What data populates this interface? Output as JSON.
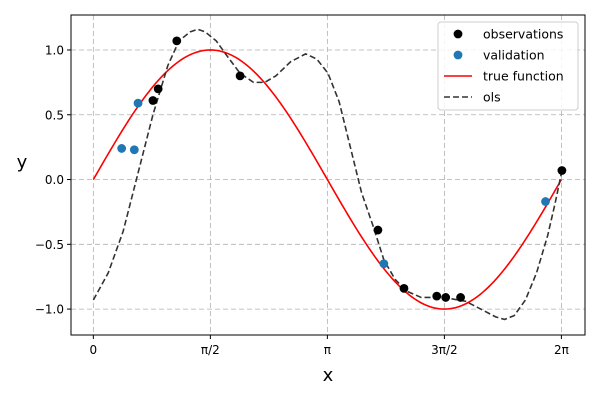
{
  "chart_data": {
    "type": "scatter",
    "xlabel": "x",
    "ylabel": "y",
    "xlim": [
      -0.3,
      6.6
    ],
    "ylim": [
      -1.2,
      1.27
    ],
    "xticks": [
      {
        "value": 0,
        "label": "0"
      },
      {
        "value": 1.5708,
        "label": "π/2"
      },
      {
        "value": 3.1416,
        "label": "π"
      },
      {
        "value": 4.7124,
        "label": "3π/2"
      },
      {
        "value": 6.2832,
        "label": "2π"
      }
    ],
    "yticks": [
      {
        "value": -1.0,
        "label": "−1.0"
      },
      {
        "value": -0.5,
        "label": "−0.5"
      },
      {
        "value": 0.0,
        "label": "0.0"
      },
      {
        "value": 0.5,
        "label": "0.5"
      },
      {
        "value": 1.0,
        "label": "1.0"
      }
    ],
    "grid": true,
    "legend_position": "top-right",
    "series": [
      {
        "name": "observations",
        "kind": "scatter",
        "color": "#000000",
        "points": [
          {
            "x": 0.8,
            "y": 0.61
          },
          {
            "x": 0.87,
            "y": 0.7
          },
          {
            "x": 1.12,
            "y": 1.07
          },
          {
            "x": 1.97,
            "y": 0.8
          },
          {
            "x": 3.82,
            "y": -0.39
          },
          {
            "x": 4.17,
            "y": -0.84
          },
          {
            "x": 4.61,
            "y": -0.9
          },
          {
            "x": 4.73,
            "y": -0.91
          },
          {
            "x": 4.93,
            "y": -0.91
          },
          {
            "x": 6.29,
            "y": 0.07
          }
        ]
      },
      {
        "name": "validation",
        "kind": "scatter",
        "color": "#1f77b4",
        "points": [
          {
            "x": 0.38,
            "y": 0.24
          },
          {
            "x": 0.55,
            "y": 0.23
          },
          {
            "x": 0.6,
            "y": 0.59
          },
          {
            "x": 3.9,
            "y": -0.65
          },
          {
            "x": 6.07,
            "y": -0.17
          }
        ]
      },
      {
        "name": "true function",
        "kind": "line",
        "color": "#ff0000",
        "function": "sin",
        "domain": [
          0,
          6.2832
        ]
      },
      {
        "name": "ols",
        "kind": "dashed-line",
        "color": "#333333",
        "points": [
          {
            "x": 0.0,
            "y": -0.93
          },
          {
            "x": 0.2,
            "y": -0.72
          },
          {
            "x": 0.4,
            "y": -0.4
          },
          {
            "x": 0.6,
            "y": 0.05
          },
          {
            "x": 0.8,
            "y": 0.5
          },
          {
            "x": 1.0,
            "y": 0.88
          },
          {
            "x": 1.15,
            "y": 1.07
          },
          {
            "x": 1.3,
            "y": 1.14
          },
          {
            "x": 1.4,
            "y": 1.16
          },
          {
            "x": 1.5,
            "y": 1.14
          },
          {
            "x": 1.65,
            "y": 1.07
          },
          {
            "x": 1.8,
            "y": 0.95
          },
          {
            "x": 1.97,
            "y": 0.82
          },
          {
            "x": 2.15,
            "y": 0.75
          },
          {
            "x": 2.3,
            "y": 0.75
          },
          {
            "x": 2.45,
            "y": 0.8
          },
          {
            "x": 2.65,
            "y": 0.91
          },
          {
            "x": 2.85,
            "y": 0.97
          },
          {
            "x": 3.0,
            "y": 0.93
          },
          {
            "x": 3.15,
            "y": 0.82
          },
          {
            "x": 3.3,
            "y": 0.6
          },
          {
            "x": 3.45,
            "y": 0.25
          },
          {
            "x": 3.6,
            "y": -0.1
          },
          {
            "x": 3.75,
            "y": -0.35
          },
          {
            "x": 3.9,
            "y": -0.62
          },
          {
            "x": 4.05,
            "y": -0.77
          },
          {
            "x": 4.2,
            "y": -0.86
          },
          {
            "x": 4.4,
            "y": -0.91
          },
          {
            "x": 4.6,
            "y": -0.91
          },
          {
            "x": 4.8,
            "y": -0.92
          },
          {
            "x": 5.0,
            "y": -0.94
          },
          {
            "x": 5.2,
            "y": -1.0
          },
          {
            "x": 5.4,
            "y": -1.06
          },
          {
            "x": 5.52,
            "y": -1.08
          },
          {
            "x": 5.65,
            "y": -1.05
          },
          {
            "x": 5.8,
            "y": -0.93
          },
          {
            "x": 5.95,
            "y": -0.72
          },
          {
            "x": 6.1,
            "y": -0.43
          },
          {
            "x": 6.2,
            "y": -0.18
          },
          {
            "x": 6.28,
            "y": 0.04
          }
        ]
      }
    ]
  }
}
